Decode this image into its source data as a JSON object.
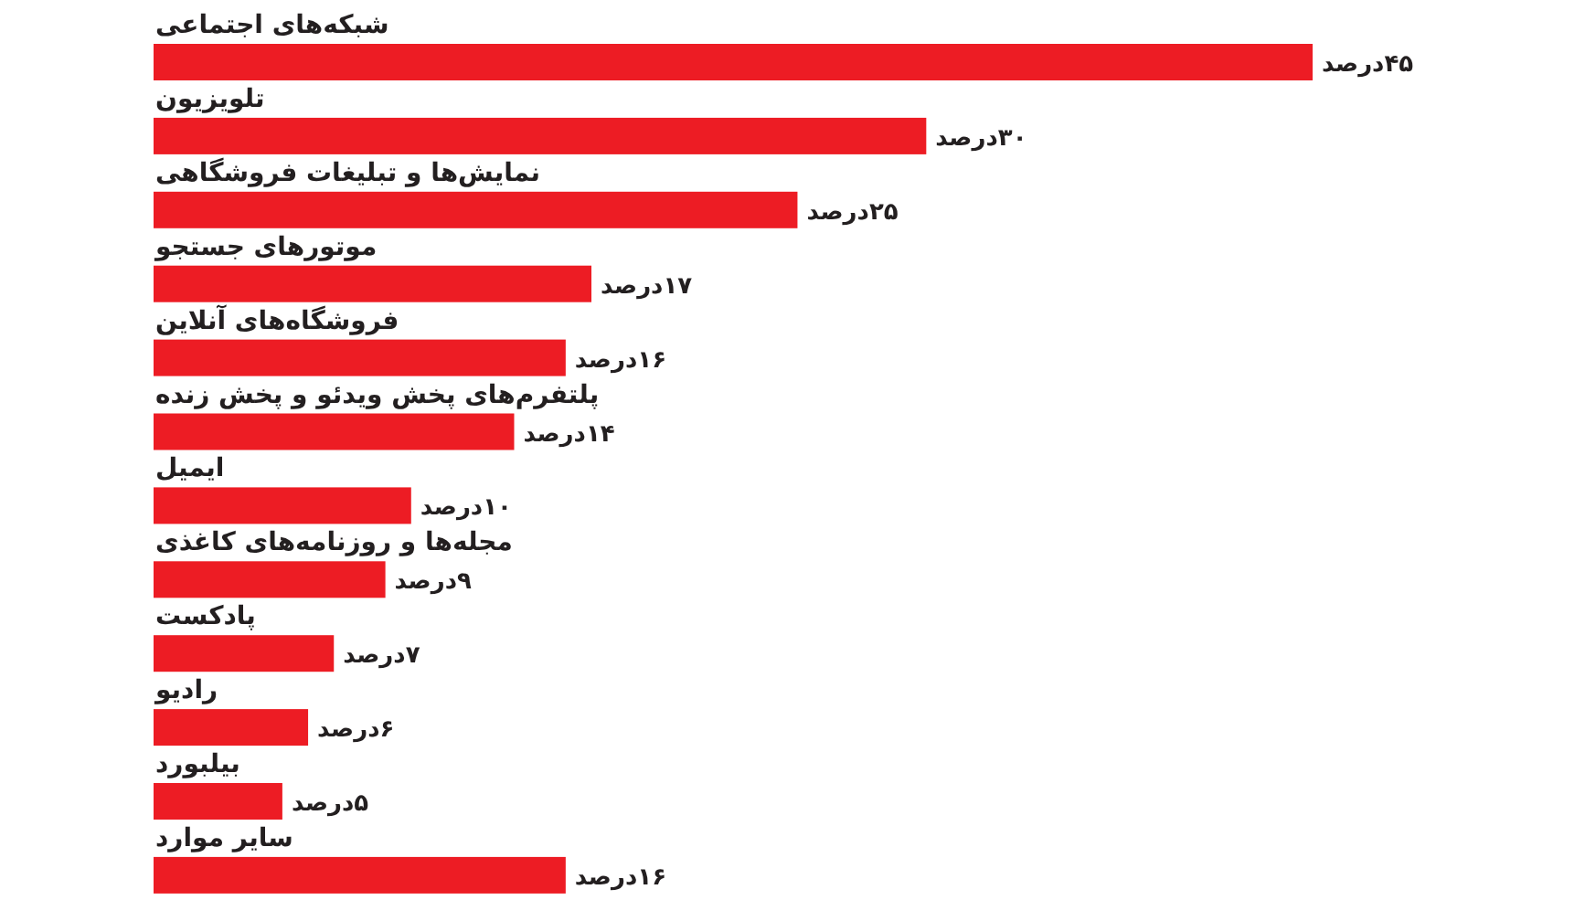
{
  "chart_data": {
    "type": "bar",
    "orientation": "horizontal",
    "categories": [
      "شبکه‌های اجتماعی",
      "تلویزیون",
      "نمایش‌ها و تبلیغات فروشگاهی",
      "موتورهای جستجو",
      "فروشگاه‌های آنلاین",
      "پلتفرم‌های پخش ویدئو و پخش زنده",
      "ایمیل",
      "مجله‌ها و روزنامه‌های کاغذی",
      "پادکست",
      "رادیو",
      "بیلبورد",
      "سایر موارد"
    ],
    "values": [
      45,
      30,
      25,
      17,
      16,
      14,
      10,
      9,
      7,
      6,
      5,
      16
    ],
    "color": "#ed1c24",
    "value_labels": [
      "۴۵درصد",
      "۳۰درصد",
      "۲۵درصد",
      "۱۷درصد",
      "۱۶درصد",
      "۱۴درصد",
      "۱۰درصد",
      "۹درصد",
      "۷درصد",
      "۶درصد",
      "۵درصد",
      "۱۶درصد"
    ]
  }
}
